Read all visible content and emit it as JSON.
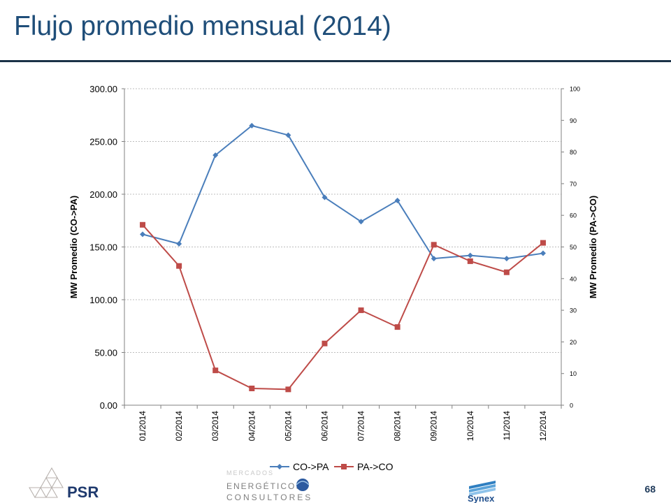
{
  "slide": {
    "title": "Flujo promedio mensual (2014)",
    "page_number": "68"
  },
  "chart_data": {
    "type": "line",
    "categories": [
      "01/2014",
      "02/2014",
      "03/2014",
      "04/2014",
      "05/2014",
      "06/2014",
      "07/2014",
      "08/2014",
      "09/2014",
      "10/2014",
      "11/2014",
      "12/2014"
    ],
    "series": [
      {
        "name": "CO->PA",
        "axis": "left",
        "color": "#4a7ebb",
        "marker": "diamond",
        "values": [
          162,
          153,
          237,
          265,
          256,
          197,
          174,
          194,
          139,
          142,
          139,
          144
        ]
      },
      {
        "name": "PA->CO",
        "axis": "right",
        "color": "#be4b48",
        "marker": "square",
        "values": [
          57,
          44,
          11,
          5.3,
          5,
          19.5,
          30,
          24.7,
          50.7,
          45.5,
          42,
          51.3
        ]
      }
    ],
    "y_left": {
      "label": "MW Promedio (CO->PA)",
      "min": 0,
      "max": 300,
      "ticks": [
        "0.00",
        "50.00",
        "100.00",
        "150.00",
        "200.00",
        "250.00",
        "300.00"
      ]
    },
    "y_right": {
      "label": "MW Promedio (PA->CO)",
      "min": 0,
      "max": 100,
      "ticks": [
        "0",
        "10",
        "20",
        "30",
        "40",
        "50",
        "60",
        "70",
        "80",
        "90",
        "100"
      ]
    },
    "grid": true,
    "legend_position": "bottom"
  },
  "logos": {
    "psr": "PSR",
    "mec_top": "MERCADOS",
    "mec_middle": "ENERGÉTICOS",
    "mec_bottom": "CONSULTORES",
    "synex": "Synex"
  }
}
